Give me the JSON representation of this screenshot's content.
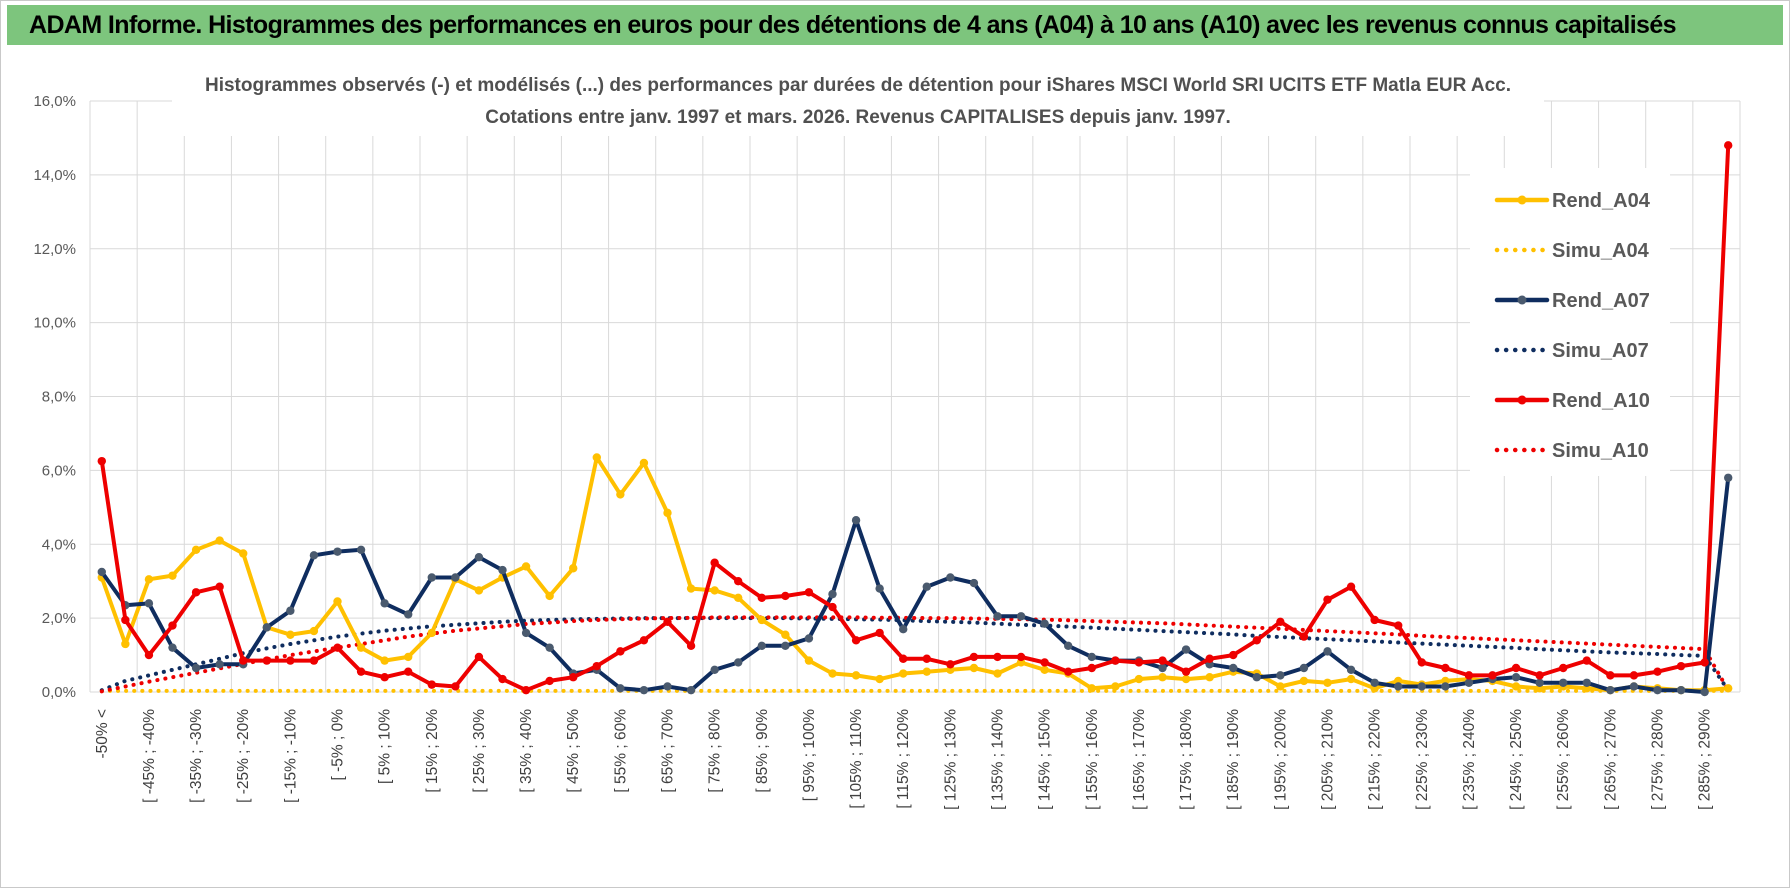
{
  "banner": {
    "title": "ADAM Informe. Histogrammes des performances en euros pour des détentions de 4 ans (A04) à 10 ans (A10) avec les revenus connus capitalisés",
    "color": "#7dc57d"
  },
  "chart_data": {
    "type": "line",
    "title": "Histogrammes observés (-) et modélisés (...) des performances par durées de détention pour iShares MSCI World SRI UCITS ETF Matla EUR Acc.",
    "subtitle": "Cotations entre janv. 1997 et mars. 2026.  Revenus CAPITALISES depuis janv. 1997.",
    "xlabel": "",
    "ylabel": "",
    "ylim": [
      0,
      16
    ],
    "y_ticks": [
      "0,0%",
      "2,0%",
      "4,0%",
      "6,0%",
      "8,0%",
      "10,0%",
      "12,0%",
      "14,0%",
      "16,0%"
    ],
    "grid": true,
    "legend_position": "right",
    "x_tick_labels": [
      "-50% <",
      "[ -45% ; -40%",
      "[ -35% ; -30%",
      "[ -25% ; -20%",
      "[ -15% ; -10%",
      "[ -5% ; 0%",
      "[ 5% ; 10%",
      "[ 15% ; 20%",
      "[ 25% ; 30%",
      "[ 35% ; 40%",
      "[ 45% ; 50%",
      "[ 55% ; 60%",
      "[ 65% ; 70%",
      "[ 75% ; 80%",
      "[ 85% ; 90%",
      "[ 95% ; 100%",
      "[ 105% ; 110%",
      "[ 115% ; 120%",
      "[ 125% ; 130%",
      "[ 135% ; 140%",
      "[ 145% ; 150%",
      "[ 155% ; 160%",
      "[ 165% ; 170%",
      "[ 175% ; 180%",
      "[ 185% ; 190%",
      "[ 195% ; 200%",
      "[ 205% ; 210%",
      "[ 215% ; 220%",
      "[ 225% ; 230%",
      "[ 235% ; 240%",
      "[ 245% ; 250%",
      "[ 255% ; 260%",
      "[ 265% ; 270%",
      "[ 275% ; 280%",
      "[ 285% ; 290%"
    ],
    "series": [
      {
        "name": "Rend_A04",
        "color": "#ffc000",
        "style": "solid",
        "markers": true,
        "values": [
          3.1,
          1.3,
          3.05,
          3.15,
          3.85,
          4.1,
          3.75,
          1.75,
          1.55,
          1.65,
          2.45,
          1.2,
          0.85,
          0.95,
          1.6,
          3.05,
          2.75,
          3.1,
          3.4,
          2.6,
          3.35,
          6.35,
          5.35,
          6.2,
          4.85,
          2.8,
          2.75,
          2.55,
          1.95,
          1.55,
          0.85,
          0.5,
          0.45,
          0.35,
          0.5,
          0.55,
          0.6,
          0.65,
          0.5,
          0.8,
          0.6,
          0.5,
          0.1,
          0.15,
          0.35,
          0.4,
          0.35,
          0.4,
          0.55,
          0.5,
          0.15,
          0.3,
          0.25,
          0.35,
          0.1,
          0.3,
          0.2,
          0.3,
          0.35,
          0.3,
          0.15,
          0.1,
          0.15,
          0.1,
          0.05,
          0.15,
          0.1,
          0.05,
          0.05,
          0.1
        ]
      },
      {
        "name": "Simu_A04",
        "color": "#ffc000",
        "style": "dotted",
        "markers": false,
        "values": [
          0.03,
          0.03,
          0.03,
          0.03,
          0.03,
          0.03,
          0.03,
          0.03,
          0.03,
          0.03,
          0.03,
          0.03,
          0.03,
          0.03,
          0.03,
          0.03,
          0.03,
          0.03,
          0.03,
          0.03,
          0.03,
          0.03,
          0.03,
          0.03,
          0.03,
          0.03,
          0.03,
          0.03,
          0.03,
          0.03,
          0.03,
          0.03,
          0.03,
          0.03,
          0.03,
          0.03,
          0.03,
          0.03,
          0.03,
          0.03,
          0.03,
          0.03,
          0.03,
          0.03,
          0.03,
          0.03,
          0.03,
          0.03,
          0.03,
          0.03,
          0.03,
          0.03,
          0.03,
          0.03,
          0.03,
          0.03,
          0.03,
          0.03,
          0.03,
          0.03,
          0.03,
          0.03,
          0.03,
          0.03,
          0.03,
          0.03,
          0.03,
          0.03,
          0.03,
          0.03
        ]
      },
      {
        "name": "Rend_A07",
        "color": "#0f2d5f",
        "marker_color": "#4a5a6e",
        "style": "solid",
        "markers": true,
        "values": [
          3.25,
          2.35,
          2.4,
          1.2,
          0.65,
          0.75,
          0.75,
          1.75,
          2.2,
          3.7,
          3.8,
          3.85,
          2.4,
          2.1,
          3.1,
          3.1,
          3.65,
          3.3,
          1.6,
          1.2,
          0.5,
          0.6,
          0.1,
          0.05,
          0.15,
          0.05,
          0.6,
          0.8,
          1.25,
          1.25,
          1.45,
          2.65,
          4.65,
          2.8,
          1.7,
          2.85,
          3.1,
          2.95,
          2.05,
          2.05,
          1.85,
          1.25,
          0.95,
          0.85,
          0.85,
          0.65,
          1.15,
          0.75,
          0.65,
          0.4,
          0.45,
          0.65,
          1.1,
          0.6,
          0.25,
          0.15,
          0.15,
          0.15,
          0.25,
          0.35,
          0.4,
          0.25,
          0.25,
          0.25,
          0.05,
          0.15,
          0.05,
          0.05,
          0.0,
          5.8
        ]
      },
      {
        "name": "Simu_A07",
        "color": "#0f2d5f",
        "style": "dotted",
        "markers": false,
        "values": [
          0.05,
          0.3,
          0.45,
          0.6,
          0.75,
          0.9,
          1.05,
          1.18,
          1.3,
          1.4,
          1.5,
          1.58,
          1.66,
          1.72,
          1.78,
          1.82,
          1.86,
          1.9,
          1.93,
          1.95,
          1.97,
          1.98,
          1.99,
          2.0,
          2.0,
          2.0,
          2.0,
          2.0,
          2.0,
          2.0,
          1.99,
          1.98,
          1.97,
          1.96,
          1.94,
          1.92,
          1.9,
          1.88,
          1.85,
          1.82,
          1.8,
          1.77,
          1.74,
          1.71,
          1.68,
          1.65,
          1.62,
          1.59,
          1.56,
          1.52,
          1.49,
          1.46,
          1.43,
          1.4,
          1.37,
          1.34,
          1.31,
          1.28,
          1.25,
          1.22,
          1.19,
          1.16,
          1.13,
          1.1,
          1.07,
          1.05,
          1.03,
          1.0,
          0.98,
          0.05
        ]
      },
      {
        "name": "Rend_A10",
        "color": "#ee0000",
        "style": "solid",
        "markers": true,
        "values": [
          6.25,
          1.95,
          1.0,
          1.8,
          2.7,
          2.85,
          0.85,
          0.85,
          0.85,
          0.85,
          1.2,
          0.55,
          0.4,
          0.55,
          0.2,
          0.15,
          0.95,
          0.35,
          0.05,
          0.3,
          0.4,
          0.7,
          1.1,
          1.4,
          1.9,
          1.25,
          3.5,
          3.0,
          2.55,
          2.6,
          2.7,
          2.3,
          1.4,
          1.6,
          0.9,
          0.9,
          0.75,
          0.95,
          0.95,
          0.95,
          0.8,
          0.55,
          0.65,
          0.85,
          0.8,
          0.85,
          0.55,
          0.9,
          1.0,
          1.4,
          1.9,
          1.5,
          2.5,
          2.85,
          1.95,
          1.8,
          0.8,
          0.65,
          0.45,
          0.45,
          0.65,
          0.45,
          0.65,
          0.85,
          0.45,
          0.45,
          0.55,
          0.7,
          0.8,
          14.8
        ]
      },
      {
        "name": "Simu_A10",
        "color": "#ee0000",
        "style": "dotted",
        "markers": false,
        "values": [
          0.02,
          0.15,
          0.28,
          0.4,
          0.52,
          0.64,
          0.76,
          0.88,
          1.0,
          1.1,
          1.2,
          1.3,
          1.4,
          1.5,
          1.58,
          1.66,
          1.72,
          1.78,
          1.84,
          1.88,
          1.92,
          1.95,
          1.97,
          1.99,
          2.0,
          2.01,
          2.02,
          2.02,
          2.02,
          2.02,
          2.02,
          2.02,
          2.02,
          2.01,
          2.01,
          2.0,
          2.0,
          1.99,
          1.98,
          1.97,
          1.96,
          1.94,
          1.92,
          1.9,
          1.88,
          1.86,
          1.83,
          1.8,
          1.77,
          1.74,
          1.71,
          1.68,
          1.65,
          1.62,
          1.59,
          1.56,
          1.52,
          1.49,
          1.46,
          1.43,
          1.4,
          1.37,
          1.34,
          1.31,
          1.28,
          1.25,
          1.22,
          1.19,
          1.16,
          0.05
        ]
      }
    ]
  }
}
